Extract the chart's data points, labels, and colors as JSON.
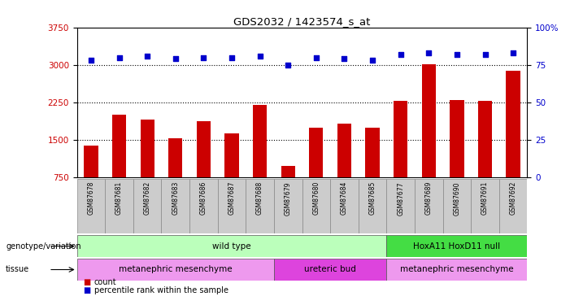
{
  "title": "GDS2032 / 1423574_s_at",
  "samples": [
    "GSM87678",
    "GSM87681",
    "GSM87682",
    "GSM87683",
    "GSM87686",
    "GSM87687",
    "GSM87688",
    "GSM87679",
    "GSM87680",
    "GSM87684",
    "GSM87685",
    "GSM87677",
    "GSM87689",
    "GSM87690",
    "GSM87691",
    "GSM87692"
  ],
  "counts": [
    1380,
    2000,
    1900,
    1530,
    1870,
    1620,
    2200,
    970,
    1750,
    1820,
    1750,
    2280,
    3020,
    2300,
    2280,
    2880
  ],
  "percentile": [
    78,
    80,
    81,
    79,
    80,
    80,
    81,
    75,
    80,
    79,
    78,
    82,
    83,
    82,
    82,
    83
  ],
  "bar_color": "#cc0000",
  "dot_color": "#0000cc",
  "ylim_left": [
    750,
    3750
  ],
  "yticks_left": [
    750,
    1500,
    2250,
    3000,
    3750
  ],
  "ylim_right": [
    0,
    100
  ],
  "yticks_right": [
    0,
    25,
    50,
    75,
    100
  ],
  "hline_values": [
    1500,
    2250,
    3000
  ],
  "genotype_groups": [
    {
      "label": "wild type",
      "start": 0,
      "end": 11,
      "color": "#bbffbb"
    },
    {
      "label": "HoxA11 HoxD11 null",
      "start": 11,
      "end": 16,
      "color": "#44dd44"
    }
  ],
  "tissue_groups": [
    {
      "label": "metanephric mesenchyme",
      "start": 0,
      "end": 7,
      "color": "#ee99ee"
    },
    {
      "label": "ureteric bud",
      "start": 7,
      "end": 11,
      "color": "#dd44dd"
    },
    {
      "label": "metanephric mesenchyme",
      "start": 11,
      "end": 16,
      "color": "#ee99ee"
    }
  ],
  "legend_count_label": "count",
  "legend_pct_label": "percentile rank within the sample",
  "background_color": "#ffffff",
  "plot_bg": "#ffffff",
  "tick_label_color_left": "#cc0000",
  "tick_label_color_right": "#0000cc",
  "sample_cell_color": "#cccccc",
  "label_genotype": "genotype/variation",
  "label_tissue": "tissue"
}
